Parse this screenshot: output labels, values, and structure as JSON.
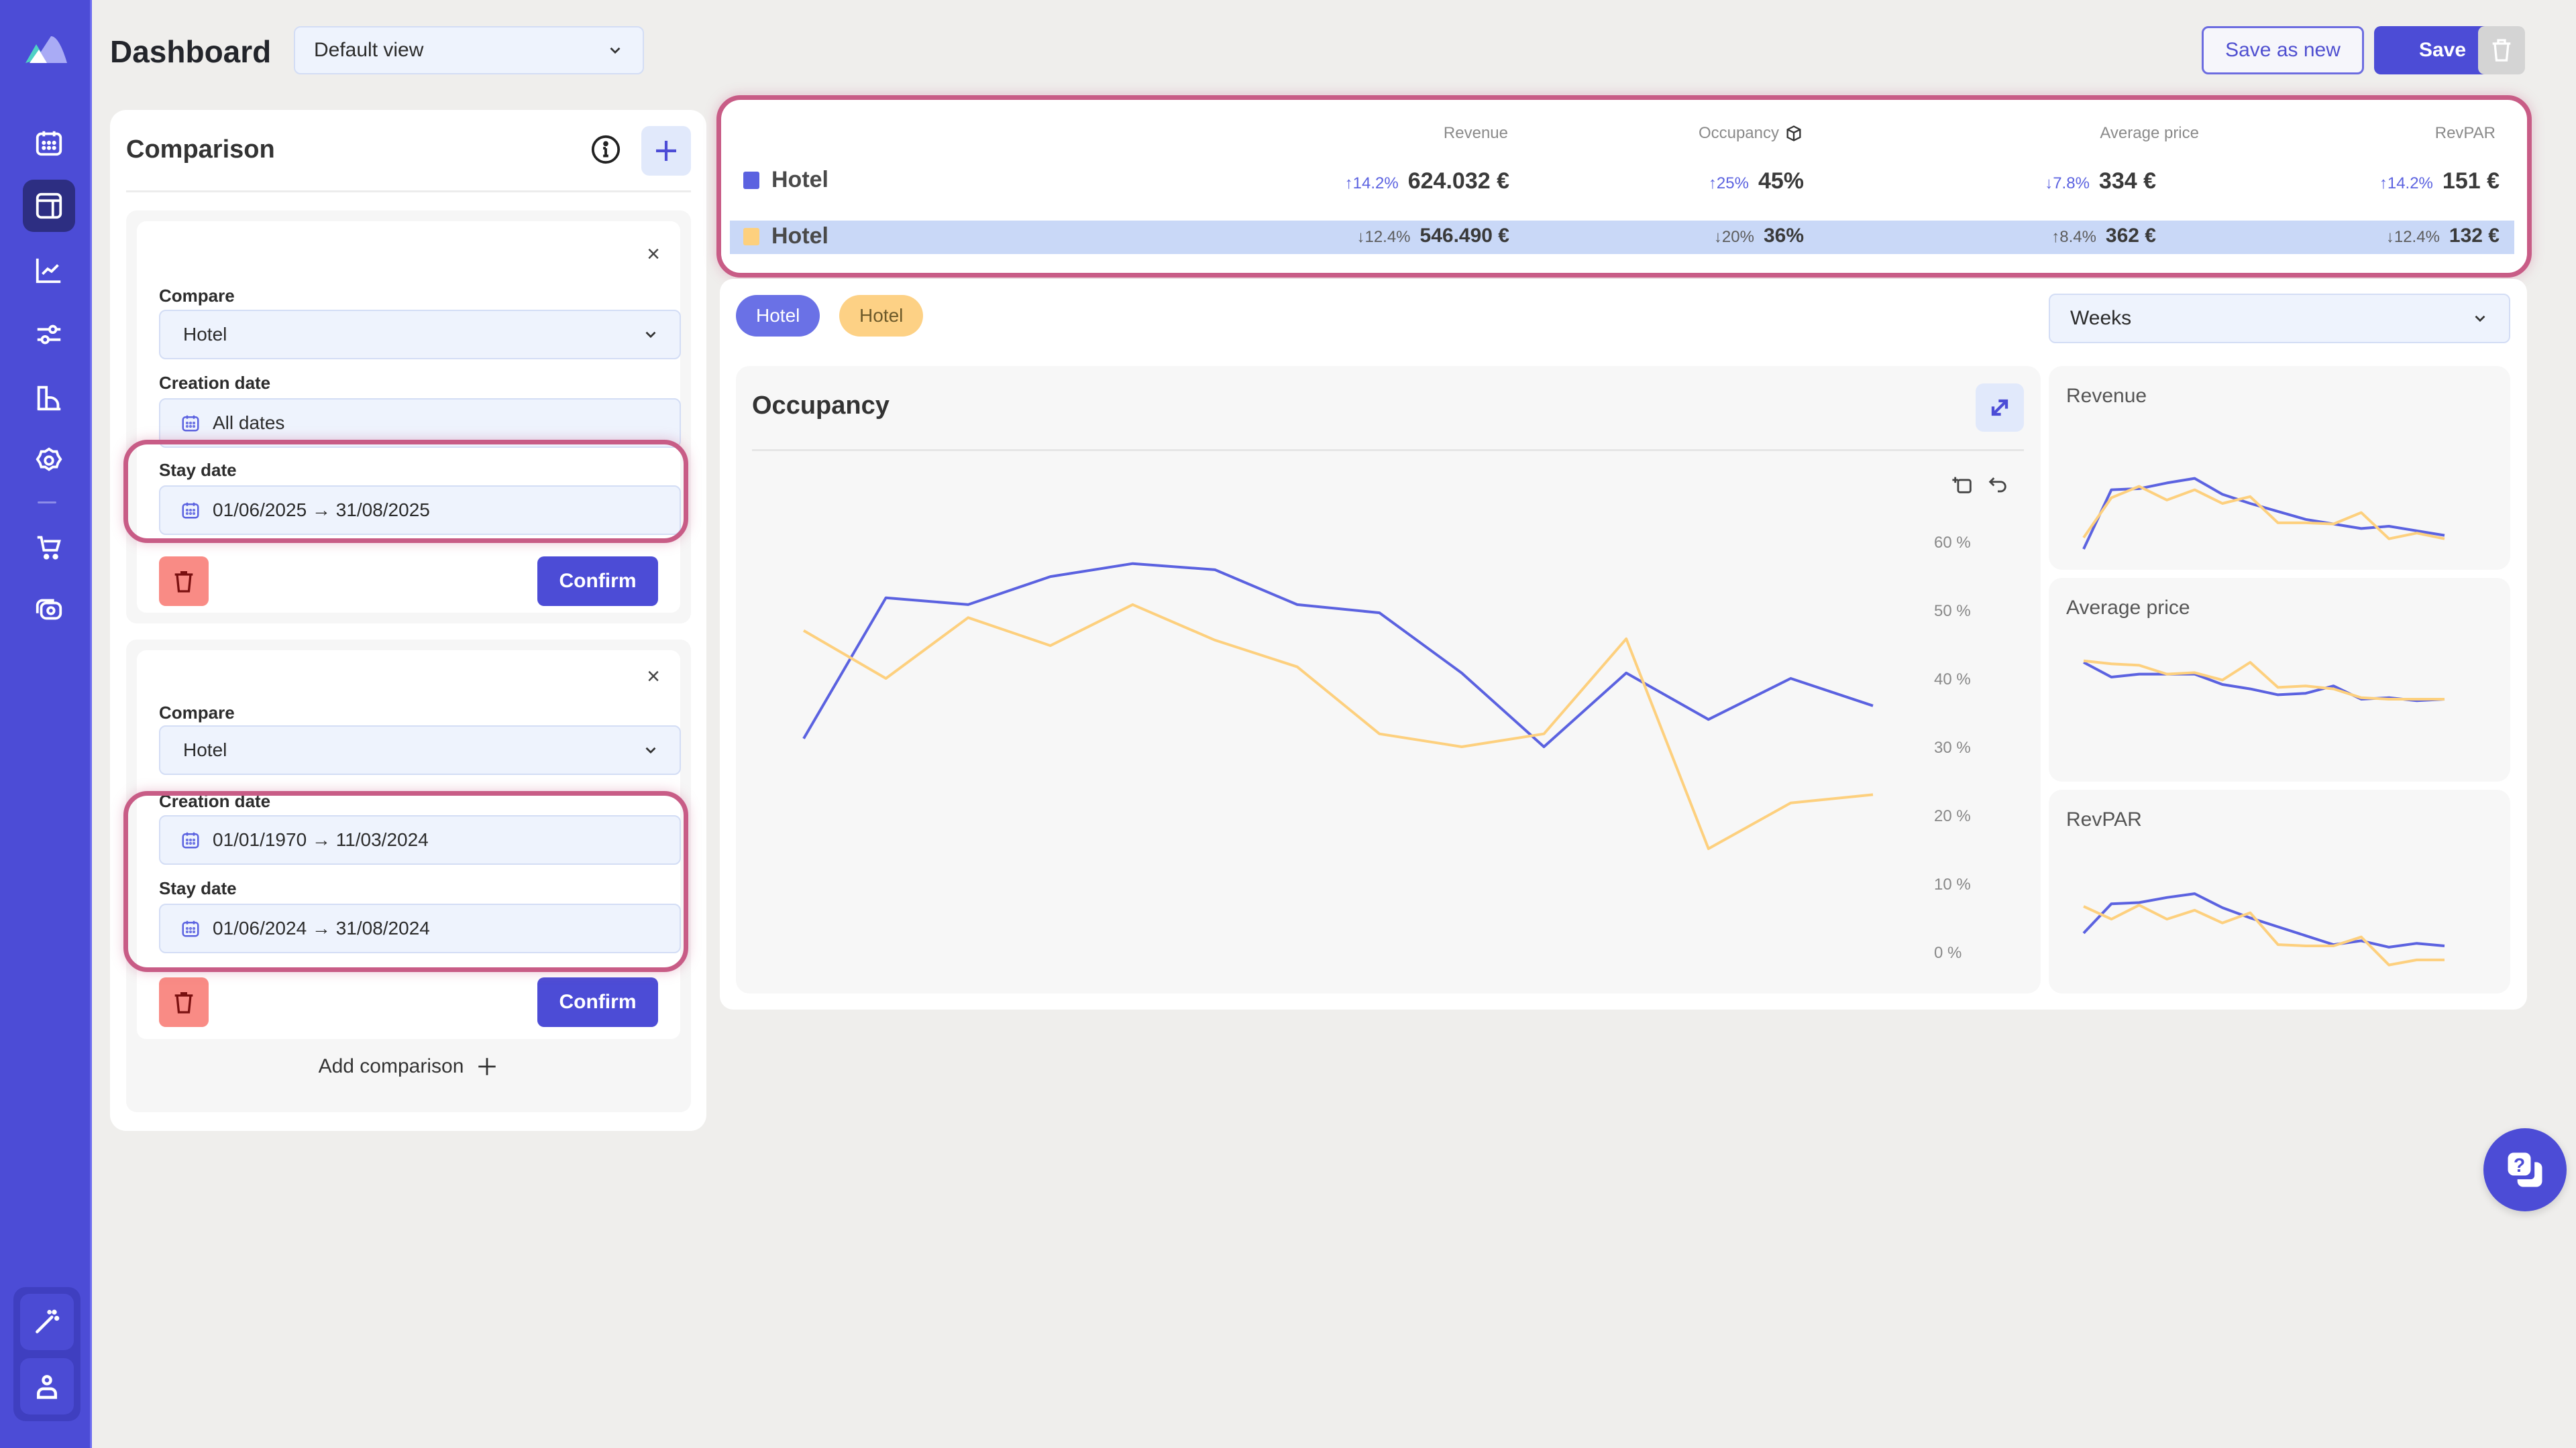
{
  "sidebar": {
    "logo": "mountain-logo",
    "items": [
      {
        "icon": "calendar-icon",
        "active": false
      },
      {
        "icon": "dashboard-layout-icon",
        "active": true
      },
      {
        "icon": "line-chart-icon",
        "active": false
      },
      {
        "icon": "sliders-icon",
        "active": false
      },
      {
        "icon": "buildings-icon",
        "active": false
      },
      {
        "icon": "settings-flower-icon",
        "active": false
      },
      {
        "icon": "cart-icon",
        "active": false
      },
      {
        "icon": "camera-icon",
        "active": false
      }
    ],
    "bottom": [
      {
        "icon": "magic-wand-icon"
      },
      {
        "icon": "user-icon"
      }
    ]
  },
  "header": {
    "title": "Dashboard",
    "view_select": "Default view",
    "save_as_new": "Save as new",
    "save": "Save"
  },
  "comparison": {
    "title": "Comparison",
    "groups": [
      {
        "compare_label": "Compare",
        "compare_value": "Hotel",
        "creation_label": "Creation date",
        "creation_value": "All dates",
        "stay_label": "Stay date",
        "stay_value": "01/06/2025 → 31/08/2025",
        "confirm": "Confirm"
      },
      {
        "compare_label": "Compare",
        "compare_value": "Hotel",
        "creation_label": "Creation date",
        "creation_value": "01/01/1970 → 11/03/2024",
        "stay_label": "Stay date",
        "stay_value": "01/06/2024 → 31/08/2024",
        "confirm": "Confirm"
      }
    ],
    "add_comparison": "Add comparison"
  },
  "kpi": {
    "headers": [
      "Revenue",
      "Occupancy",
      "Average price",
      "RevPAR"
    ],
    "rows": [
      {
        "name": "Hotel",
        "color": "#5b62e0",
        "cells": [
          {
            "delta": "↑14.2%",
            "value": "624.032 €"
          },
          {
            "delta": "↑25%",
            "value": "45%"
          },
          {
            "delta": "↓7.8%",
            "value": "334 €"
          },
          {
            "delta": "↑14.2%",
            "value": "151 €"
          }
        ]
      },
      {
        "name": "Hotel",
        "color": "#fdd07e",
        "cells": [
          {
            "delta": "↓12.4%",
            "value": "546.490 €"
          },
          {
            "delta": "↓20%",
            "value": "36%"
          },
          {
            "delta": "↑8.4%",
            "value": "362 €"
          },
          {
            "delta": "↓12.4%",
            "value": "132 €"
          }
        ]
      }
    ]
  },
  "chips": [
    "Hotel",
    "Hotel"
  ],
  "granularity": "Weeks",
  "main_chart": {
    "title": "Occupancy",
    "yticks": [
      "60 %",
      "50 %",
      "40 %",
      "30 %",
      "20 %",
      "10 %",
      "0 %"
    ]
  },
  "mini_charts": [
    "Revenue",
    "Average price",
    "RevPAR"
  ],
  "colors": {
    "primary": "#4c4cd6",
    "series_current": "#5b62e0",
    "series_compare": "#fdd07e",
    "highlight": "#c85c86"
  },
  "chart_data": [
    {
      "type": "line",
      "title": "Occupancy",
      "xlabel": "",
      "ylabel": "",
      "ylim": [
        0,
        60
      ],
      "yticks": [
        0,
        10,
        20,
        30,
        40,
        50,
        60
      ],
      "grid": false,
      "x": [
        1,
        2,
        3,
        4,
        5,
        6,
        7,
        8,
        9,
        10,
        11,
        12,
        13,
        14
      ],
      "series": [
        {
          "name": "Hotel (01/06/2025 → 31/08/2025)",
          "color": "#5b62e0",
          "values": [
            31,
            51.6,
            50.6,
            54.7,
            56.6,
            55.7,
            50.6,
            49.4,
            40.6,
            29.8,
            40.6,
            33.8,
            39.8,
            35.8
          ]
        },
        {
          "name": "Hotel (01/06/2024 → 31/08/2024)",
          "color": "#fdd07e",
          "values": [
            46.8,
            39.8,
            48.7,
            44.6,
            50.6,
            45.4,
            41.5,
            31.7,
            29.8,
            31.7,
            45.6,
            14.9,
            21.6,
            22.8
          ]
        }
      ]
    },
    {
      "type": "line",
      "title": "Revenue",
      "x": [
        1,
        2,
        3,
        4,
        5,
        6,
        7,
        8,
        9,
        10,
        11,
        12,
        13,
        14
      ],
      "series": [
        {
          "name": "Hotel",
          "color": "#5b62e0",
          "values": [
            10,
            62,
            63,
            68,
            72,
            58,
            50,
            43,
            36,
            32,
            28,
            30,
            26,
            22
          ]
        },
        {
          "name": "Hotel",
          "color": "#fdd07e",
          "values": [
            20,
            55,
            65,
            53,
            62,
            50,
            56,
            33,
            33,
            32,
            42,
            19,
            24,
            19
          ]
        }
      ]
    },
    {
      "type": "line",
      "title": "Average price",
      "x": [
        1,
        2,
        3,
        4,
        5,
        6,
        7,
        8,
        9,
        10,
        11,
        12,
        13,
        14
      ],
      "series": [
        {
          "name": "Hotel",
          "color": "#5b62e0",
          "values": [
            70,
            60,
            62,
            62,
            62,
            55,
            52,
            48,
            49,
            54,
            45,
            46,
            44,
            45
          ]
        },
        {
          "name": "Hotel",
          "color": "#fdd07e",
          "values": [
            71,
            69,
            68,
            62,
            63,
            58,
            70,
            53,
            54,
            52,
            46,
            45,
            45,
            45
          ]
        }
      ]
    },
    {
      "type": "line",
      "title": "RevPAR",
      "x": [
        1,
        2,
        3,
        4,
        5,
        6,
        7,
        8,
        9,
        10,
        11,
        12,
        13,
        14
      ],
      "series": [
        {
          "name": "Hotel",
          "color": "#5b62e0",
          "values": [
            40,
            63,
            64,
            68,
            71,
            60,
            52,
            45,
            38,
            31,
            34,
            29,
            32,
            30
          ]
        },
        {
          "name": "Hotel",
          "color": "#fdd07e",
          "values": [
            61,
            51,
            62,
            51,
            58,
            48,
            56,
            31,
            30,
            30,
            37,
            15,
            19,
            19
          ]
        }
      ]
    }
  ]
}
